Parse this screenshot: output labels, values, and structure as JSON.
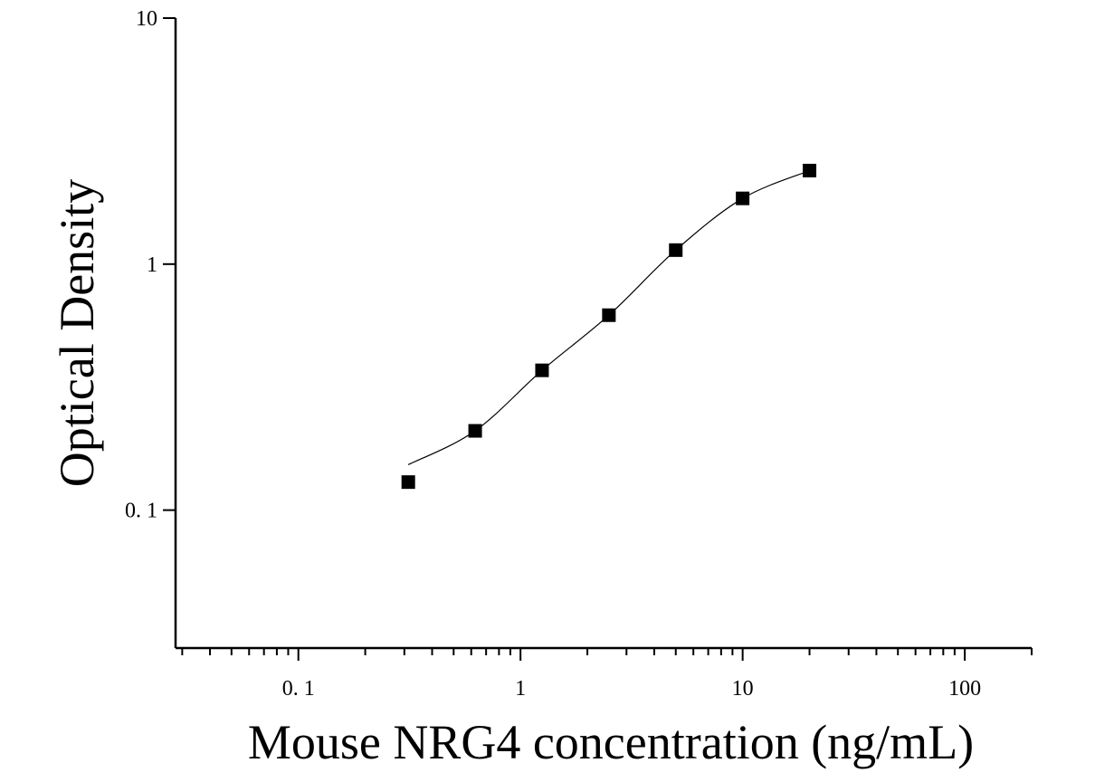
{
  "chart_data": {
    "type": "scatter",
    "title": "",
    "xlabel": "Mouse NRG4 concentration (ng/mL)",
    "ylabel": "Optical Density",
    "x_scale": "log",
    "y_scale": "log",
    "xlim": [
      0.028,
      200
    ],
    "ylim": [
      0.0275,
      10
    ],
    "x_ticks": [
      {
        "value": 0.1,
        "label": "0. 1"
      },
      {
        "value": 1,
        "label": "1"
      },
      {
        "value": 10,
        "label": "10"
      },
      {
        "value": 100,
        "label": "100"
      }
    ],
    "y_ticks": [
      {
        "value": 0.1,
        "label": "0. 1"
      },
      {
        "value": 1,
        "label": "1"
      },
      {
        "value": 10,
        "label": "10"
      }
    ],
    "grid": false,
    "legend": "none",
    "series": [
      {
        "x": [
          0.3125,
          0.625,
          1.25,
          2.5,
          5,
          10,
          20
        ],
        "y": [
          0.13,
          0.21,
          0.37,
          0.62,
          1.14,
          1.85,
          2.4
        ],
        "marker": "square",
        "color": "#000000",
        "fit": "4PL",
        "fit_color": "#000000"
      }
    ]
  }
}
